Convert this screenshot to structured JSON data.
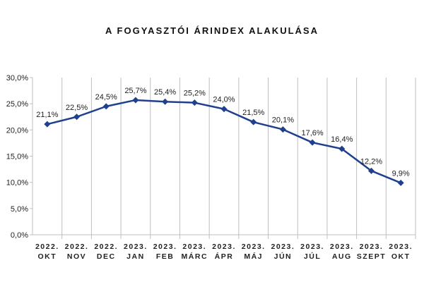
{
  "chart_data": {
    "type": "line",
    "title": "A FOGYASZTÓI ÁRINDEX ALAKULÁSA",
    "categories": [
      [
        "2022.",
        "OKT"
      ],
      [
        "2022.",
        "NOV"
      ],
      [
        "2022.",
        "DEC"
      ],
      [
        "2023.",
        "JAN"
      ],
      [
        "2023.",
        "FEB"
      ],
      [
        "2023.",
        "MÁRC"
      ],
      [
        "2023.",
        "ÁPR"
      ],
      [
        "2023.",
        "MÁJ"
      ],
      [
        "2023.",
        "JÚN"
      ],
      [
        "2023.",
        "JÚL"
      ],
      [
        "2023.",
        "AUG"
      ],
      [
        "2023.",
        "SZEPT"
      ],
      [
        "2023.",
        "OKT"
      ]
    ],
    "series": [
      {
        "values": [
          21.1,
          22.5,
          24.5,
          25.7,
          25.4,
          25.2,
          24.0,
          21.5,
          20.1,
          17.6,
          16.4,
          12.2,
          9.9
        ],
        "data_labels": [
          "21,1%",
          "22,5%",
          "24,5%",
          "25,7%",
          "25,4%",
          "25,2%",
          "24,0%",
          "21,5%",
          "20,1%",
          "17,6%",
          "16,4%",
          "12,2%",
          "9,9%"
        ],
        "color": "#1f3f8f"
      }
    ],
    "ylim": [
      0,
      30
    ],
    "yticks": [
      0,
      5,
      10,
      15,
      20,
      25,
      30
    ],
    "ytick_labels": [
      "0,0%",
      "5,0%",
      "10,0%",
      "15,0%",
      "20,0%",
      "25,0%",
      "30,0%"
    ],
    "grid": "vertical-category-separators",
    "legend": "none",
    "xlabel": "",
    "ylabel": ""
  }
}
